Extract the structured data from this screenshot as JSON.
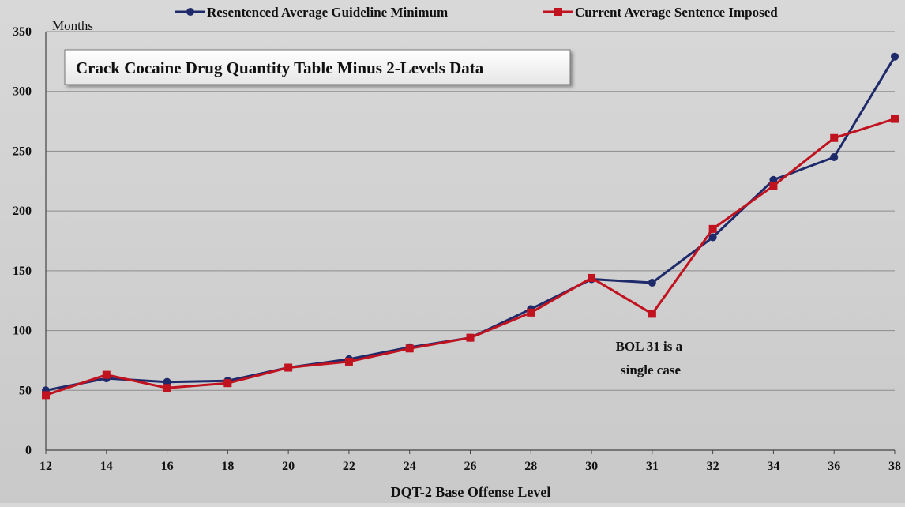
{
  "chart_data": {
    "type": "line",
    "title": "Crack Cocaine Drug Quantity Table Minus 2-Levels Data",
    "xlabel": "DQT-2 Base Offense Level",
    "ylabel": "Months",
    "categories": [
      "12",
      "14",
      "16",
      "18",
      "20",
      "22",
      "24",
      "26",
      "28",
      "30",
      "31",
      "32",
      "34",
      "36",
      "38"
    ],
    "ylim": [
      0,
      350
    ],
    "yticks": [
      0,
      50,
      100,
      150,
      200,
      250,
      300,
      350
    ],
    "grid": true,
    "legend_position": "top",
    "series": [
      {
        "name": "Resentenced Average Guideline Minimum",
        "color": "#1f2a6b",
        "marker": "circle",
        "values": [
          50,
          60,
          57,
          58,
          69,
          76,
          86,
          94,
          118,
          143,
          140,
          178,
          226,
          245,
          329
        ]
      },
      {
        "name": "Current Average Sentence Imposed",
        "color": "#c0121f",
        "marker": "square",
        "values": [
          46,
          63,
          52,
          56,
          69,
          74,
          85,
          94,
          115,
          144,
          114,
          185,
          221,
          261,
          277
        ]
      }
    ],
    "annotations": [
      {
        "lines": [
          "BOL 31 is a",
          "single case"
        ],
        "category": "30",
        "value": 100
      }
    ]
  }
}
